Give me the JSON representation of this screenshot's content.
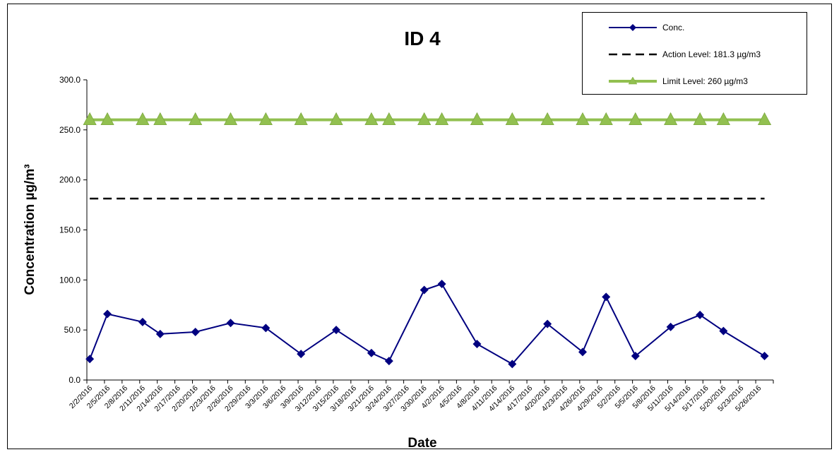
{
  "chart_data": {
    "type": "line",
    "title": "ID 4",
    "xlabel": "Date",
    "ylabel": "Concentration µg/m³",
    "ylim": [
      0,
      300
    ],
    "yticks": [
      "0.0",
      "50.0",
      "100.0",
      "150.0",
      "200.0",
      "250.0",
      "300.0"
    ],
    "categories": [
      "2/2/2016",
      "2/5/2016",
      "2/8/2016",
      "2/11/2016",
      "2/14/2016",
      "2/17/2016",
      "2/20/2016",
      "2/23/2016",
      "2/26/2016",
      "2/29/2016",
      "3/3/2016",
      "3/6/2016",
      "3/9/2016",
      "3/12/2016",
      "3/15/2016",
      "3/18/2016",
      "3/21/2016",
      "3/24/2016",
      "3/27/2016",
      "3/30/2016",
      "4/2/2016",
      "4/5/2016",
      "4/8/2016",
      "4/11/2016",
      "4/14/2016",
      "4/17/2016",
      "4/20/2016",
      "4/23/2016",
      "4/26/2016",
      "4/29/2016",
      "5/2/2016",
      "5/5/2016",
      "5/8/2016",
      "5/11/2016",
      "5/14/2016",
      "5/17/2016",
      "5/20/2016",
      "5/23/2016",
      "5/26/2016"
    ],
    "series": [
      {
        "name": "Conc.",
        "color": "#000080",
        "marker": "diamond",
        "points": [
          [
            "2/2/2016",
            21
          ],
          [
            "2/5/2016",
            66
          ],
          [
            "2/11/2016",
            58
          ],
          [
            "2/14/2016",
            46
          ],
          [
            "2/20/2016",
            48
          ],
          [
            "2/26/2016",
            57
          ],
          [
            "3/3/2016",
            52
          ],
          [
            "3/9/2016",
            26
          ],
          [
            "3/15/2016",
            50
          ],
          [
            "3/21/2016",
            27
          ],
          [
            "3/24/2016",
            19
          ],
          [
            "3/30/2016",
            90
          ],
          [
            "4/2/2016",
            96
          ],
          [
            "4/8/2016",
            36
          ],
          [
            "4/14/2016",
            16
          ],
          [
            "4/20/2016",
            56
          ],
          [
            "4/26/2016",
            28
          ],
          [
            "4/30/2016",
            83
          ],
          [
            "5/5/2016",
            24
          ],
          [
            "5/11/2016",
            53
          ],
          [
            "5/16/2016",
            65
          ],
          [
            "5/20/2016",
            49
          ],
          [
            "5/27/2016",
            24
          ]
        ]
      },
      {
        "name": "Action Level: 181.3 µg/m3",
        "color": "#000000",
        "style": "dashed",
        "constant": 181.3,
        "x_range": [
          "2/2/2016",
          "5/27/2016"
        ]
      },
      {
        "name": "Limit Level: 260 µg/m3",
        "color": "#92c050",
        "marker": "triangle",
        "constant": 260,
        "marker_dates": [
          "2/2/2016",
          "2/5/2016",
          "2/11/2016",
          "2/14/2016",
          "2/20/2016",
          "2/26/2016",
          "3/3/2016",
          "3/9/2016",
          "3/15/2016",
          "3/21/2016",
          "3/24/2016",
          "3/30/2016",
          "4/2/2016",
          "4/8/2016",
          "4/14/2016",
          "4/20/2016",
          "4/26/2016",
          "4/30/2016",
          "5/5/2016",
          "5/11/2016",
          "5/16/2016",
          "5/20/2016",
          "5/27/2016"
        ]
      }
    ],
    "legend": "top-right",
    "grid": false
  }
}
